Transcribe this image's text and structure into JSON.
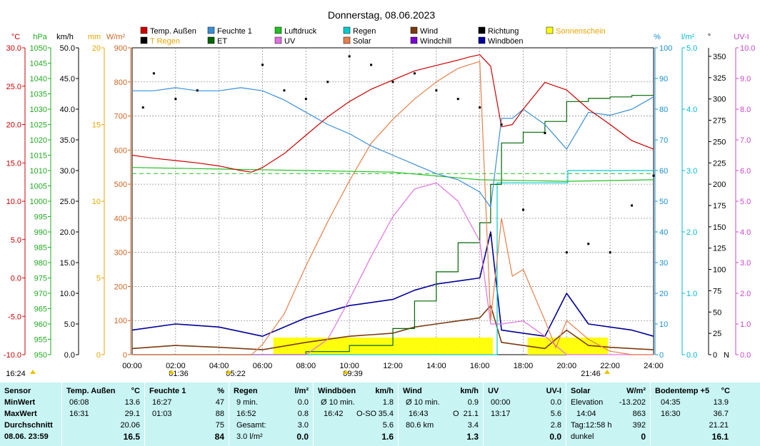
{
  "window": {
    "title": "Donnerstag, 08.06.2023"
  },
  "legend": [
    {
      "label": "Temp. Außen",
      "color": "#cc0000"
    },
    {
      "label": "Feuchte 1",
      "color": "#3a8fd6"
    },
    {
      "label": "Luftdruck",
      "color": "#22c022"
    },
    {
      "label": "Regen",
      "color": "#00cccc"
    },
    {
      "label": "Wind",
      "color": "#7a3a10"
    },
    {
      "label": "Richtung",
      "color": "#000000"
    },
    {
      "label": "Sonnenschein",
      "color": "#ffff00"
    },
    {
      "label": "T Regen",
      "color": "#000000"
    },
    {
      "label": "ET",
      "color": "#006600"
    },
    {
      "label": "UV",
      "color": "#e070e0"
    },
    {
      "label": "Solar",
      "color": "#e8804a"
    },
    {
      "label": "Windchill",
      "color": "#7a00cc"
    },
    {
      "label": "Windböen",
      "color": "#000099"
    }
  ],
  "axis_units": {
    "temp": "°C",
    "hpa": "hPa",
    "kmh": "km/h",
    "mm": "mm",
    "wm2": "W/m²",
    "pct": "%",
    "lm2": "l/m²",
    "deg": "°",
    "uvi": "UV-I"
  },
  "chart_data": {
    "type": "line",
    "title": "Donnerstag, 08.06.2023",
    "x": {
      "label": "time",
      "ticks": [
        "00:00",
        "02:00",
        "04:00",
        "06:00",
        "08:00",
        "10:00",
        "12:00",
        "14:00",
        "16:00",
        "18:00",
        "20:00",
        "22:00",
        "24:00"
      ],
      "range_hours": [
        0,
        24
      ]
    },
    "y_axes": {
      "temp_c": {
        "range": [
          -10,
          30
        ],
        "ticks": [
          "-10.0",
          "-5.0",
          "0.0",
          "5.0",
          "10.0",
          "15.0",
          "20.0",
          "25.0",
          "30.0"
        ]
      },
      "pressure_hpa": {
        "range": [
          950,
          1050
        ],
        "ticks": [
          "950",
          "955",
          "960",
          "965",
          "970",
          "975",
          "980",
          "985",
          "990",
          "995",
          "1000",
          "1005",
          "1010",
          "1015",
          "1020",
          "1025",
          "1030",
          "1035",
          "1040",
          "1045",
          "1050"
        ]
      },
      "wind_kmh": {
        "range": [
          0,
          50
        ],
        "ticks": [
          "0.0",
          "5.0",
          "10.0",
          "15.0",
          "20.0",
          "25.0",
          "30.0",
          "35.0",
          "40.0",
          "45.0",
          "50.0"
        ]
      },
      "rain_mm": {
        "range": [
          0,
          20
        ],
        "ticks": [
          "0",
          "5",
          "10",
          "15",
          "20"
        ]
      },
      "solar_wm2": {
        "range": [
          0,
          900
        ],
        "ticks": [
          "0",
          "100",
          "200",
          "300",
          "400",
          "500",
          "600",
          "700",
          "800",
          "900"
        ]
      },
      "humidity_pct": {
        "range": [
          0,
          100
        ],
        "ticks": [
          "0",
          "10",
          "20",
          "30",
          "40",
          "50",
          "60",
          "70",
          "80",
          "90",
          "100"
        ]
      },
      "rain_lm2": {
        "range": [
          0,
          5
        ],
        "ticks": [
          "0.0",
          "1.0",
          "2.0",
          "3.0",
          "4.0",
          "5.0"
        ]
      },
      "direction_deg": {
        "range": [
          0,
          360
        ],
        "ticks": [
          "0",
          "25",
          "50",
          "75",
          "100",
          "125",
          "150",
          "175",
          "200",
          "225",
          "250",
          "275",
          "300",
          "325",
          "350"
        ],
        "n_label": "N"
      },
      "uv_index": {
        "range": [
          0,
          10
        ],
        "ticks": [
          "0.0",
          "1.0",
          "2.0",
          "3.0",
          "4.0",
          "5.0",
          "6.0",
          "7.0",
          "8.0",
          "9.0",
          "10.0"
        ]
      }
    },
    "series": [
      {
        "name": "Temp. Außen",
        "unit": "°C",
        "x": [
          0,
          1,
          2,
          3,
          4,
          5,
          5.5,
          6,
          7,
          8,
          9,
          10,
          11,
          12,
          13,
          14,
          15,
          15.5,
          16,
          16.5,
          17,
          17.5,
          18,
          19,
          19.5,
          20,
          21,
          22,
          23,
          24
        ],
        "y": [
          16.0,
          15.6,
          15.3,
          15.0,
          14.6,
          14.0,
          13.8,
          14.4,
          16.2,
          18.6,
          21.0,
          23.0,
          24.6,
          25.8,
          27.0,
          27.7,
          28.4,
          28.8,
          29.1,
          27.6,
          19.7,
          20.0,
          22.0,
          25.5,
          25.0,
          24.5,
          22.0,
          20.0,
          17.9,
          16.8
        ]
      },
      {
        "name": "Feuchte 1",
        "unit": "%",
        "x": [
          0,
          1,
          2,
          3,
          4,
          5,
          6,
          7,
          8,
          9,
          10,
          11,
          12,
          13,
          14,
          15,
          16,
          16.5,
          17,
          17.5,
          18,
          19,
          19.5,
          20,
          21,
          22,
          23,
          24
        ],
        "y": [
          86,
          86,
          87,
          86,
          86,
          87,
          86,
          83,
          79,
          75,
          72,
          68,
          65,
          62,
          59,
          57,
          53,
          48,
          77,
          77,
          80,
          75,
          71,
          67,
          79,
          78,
          80,
          84
        ]
      },
      {
        "name": "Luftdruck",
        "unit": "hPa",
        "x": [
          0,
          4,
          8,
          12,
          16,
          20,
          24
        ],
        "y": [
          1011.0,
          1010.5,
          1010.0,
          1009.5,
          1007.0,
          1006.5,
          1007.0
        ]
      },
      {
        "name": "Solar",
        "unit": "W/m²",
        "x": [
          0,
          5.5,
          6,
          7,
          8,
          9,
          10,
          11,
          12,
          13,
          14,
          15,
          16,
          16.5,
          17,
          17.5,
          18,
          19,
          19.5,
          20,
          21,
          22,
          23,
          24
        ],
        "y": [
          0,
          0,
          30,
          120,
          260,
          390,
          510,
          620,
          690,
          750,
          800,
          840,
          860,
          100,
          400,
          230,
          250,
          100,
          20,
          100,
          45,
          10,
          0,
          0
        ]
      },
      {
        "name": "UV",
        "unit": "UV-I",
        "x": [
          0,
          8,
          9,
          10,
          11,
          12,
          13,
          14,
          15,
          16,
          16.5,
          17,
          18,
          19,
          20,
          24
        ],
        "y": [
          0,
          0,
          0.5,
          1.8,
          3.2,
          4.5,
          5.4,
          5.6,
          5.0,
          3.7,
          1.0,
          1.0,
          1.1,
          0.6,
          0,
          0
        ]
      },
      {
        "name": "Regen",
        "unit": "l/m²",
        "x": [
          0,
          16.75,
          16.8,
          17.5,
          20,
          20.05,
          24
        ],
        "y": [
          0,
          0,
          2.8,
          2.8,
          2.8,
          3.0,
          3.0
        ]
      },
      {
        "name": "ET",
        "unit": "mm",
        "x": [
          0,
          6,
          8,
          10,
          12,
          13,
          14,
          15,
          16,
          16.5,
          17,
          18,
          19,
          20,
          21,
          22,
          23,
          24
        ],
        "y": [
          0.0,
          0.0,
          0.2,
          0.6,
          1.7,
          3.5,
          5.4,
          7.3,
          8.6,
          11.1,
          13.8,
          14.5,
          15.2,
          16.5,
          16.7,
          16.8,
          16.9,
          16.9
        ]
      },
      {
        "name": "Wind",
        "unit": "km/h",
        "x": [
          0,
          2,
          4,
          6,
          8,
          10,
          12,
          13,
          14,
          15,
          16,
          16.5,
          17,
          18,
          19,
          20,
          21,
          22,
          23,
          24
        ],
        "y": [
          1.0,
          1.5,
          1.2,
          0.8,
          2.0,
          3.0,
          3.5,
          4.5,
          5.0,
          5.5,
          6.0,
          8.0,
          2.0,
          1.5,
          1.0,
          4.0,
          1.5,
          1.2,
          1.0,
          0.8
        ]
      },
      {
        "name": "Windböen",
        "unit": "km/h",
        "x": [
          0,
          2,
          4,
          6,
          8,
          10,
          12,
          13,
          14,
          15,
          16,
          16.5,
          17,
          18,
          19,
          20,
          21,
          22,
          23,
          24
        ],
        "y": [
          4.0,
          5.0,
          4.5,
          3.0,
          6.0,
          8.0,
          9.0,
          10.5,
          11.5,
          12.0,
          12.5,
          20.0,
          4.0,
          3.5,
          3.0,
          10.0,
          5.0,
          4.5,
          4.0,
          3.0
        ]
      },
      {
        "name": "Richtung",
        "unit": "°",
        "x": [
          0.5,
          1,
          2,
          3,
          6,
          7,
          8,
          9,
          10,
          11,
          12,
          13,
          14,
          15,
          16,
          16.5,
          17,
          18,
          19,
          20,
          21,
          22,
          23,
          24
        ],
        "y": [
          290,
          330,
          300,
          310,
          340,
          310,
          300,
          320,
          350,
          340,
          320,
          330,
          310,
          300,
          290,
          140,
          270,
          170,
          260,
          120,
          130,
          120,
          175,
          210
        ]
      }
    ],
    "annotations": {
      "left_markers": [
        "16:24",
        "01:36",
        "05:22",
        "09:39"
      ],
      "right_markers": [
        "21:46"
      ]
    }
  },
  "stats": {
    "headers": {
      "sensor": "Sensor",
      "min": "MinWert",
      "max": "MaxWert",
      "avg": "Durchschnitt",
      "now": "08.06. 23:59"
    },
    "temp": {
      "title": "Temp. Außen",
      "unit": "°C",
      "min_time": "06:08",
      "min": "13.6",
      "max_time": "16:31",
      "max": "29.1",
      "avg": "20.06",
      "now": "16.5"
    },
    "humidity": {
      "title": "Feuchte 1",
      "unit": "%",
      "min_time": "16:27",
      "min": "47",
      "max_time": "01:03",
      "max": "88",
      "avg": "75",
      "now": "84"
    },
    "rain": {
      "title": "Regen",
      "unit": "l/m²",
      "r1_label": "9 min.",
      "r1_val": "0.0",
      "r2_label": "16:52",
      "r2_val": "0.8",
      "r3_label": "Gesamt:",
      "r3_val": "3.0",
      "r4_label": "3.0 l/m²",
      "r4_val": "0.0"
    },
    "gust": {
      "title": "Windböen",
      "unit": "km/h",
      "r1_label": "Ø 10 min.",
      "r1_val": "1.8",
      "r2_label": "16:42",
      "r2_dir": "O-SO",
      "r2_val": "35.4",
      "r3_val": "5.6",
      "r4_val": "1.6"
    },
    "wind": {
      "title": "Wind",
      "unit": "km/h",
      "r1_label": "Ø 10 min.",
      "r1_val": "0.9",
      "r2_label": "16:43",
      "r2_dir": "O",
      "r2_val": "21.1",
      "r3_label": "80.6 km",
      "r3_val": "3.4",
      "r4_val": "1.3"
    },
    "uv": {
      "title": "UV",
      "unit": "UV-I",
      "r1_label": "00:00",
      "r1_val": "0.0",
      "r2_label": "13:17",
      "r2_val": "5.6",
      "r3_val": "2.8",
      "r4_val": "0.0"
    },
    "solar": {
      "title": "Solar",
      "unit": "W/m²",
      "r1_label": "Elevation",
      "r1_val": "-13.202",
      "r2_label": "14:04",
      "r2_val": "863",
      "r3_label": "Tag:12:58 h",
      "r3_val": "392",
      "r4_label": "dunkel",
      "r4_val": "0"
    },
    "soil": {
      "title": "Bodentemp +5",
      "unit": "°C",
      "r1_label": "04:35",
      "r1_val": "13.9",
      "r2_label": "16:30",
      "r2_val": "36.7",
      "r3_val": "21.21",
      "r4_val": "16.1"
    }
  }
}
